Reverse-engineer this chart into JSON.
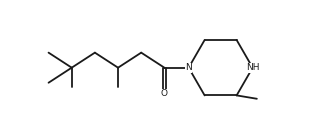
{
  "bg_color": "#ffffff",
  "line_color": "#1a1a1a",
  "line_width": 1.3,
  "font_size": 6.5,
  "nh_label": "NH",
  "n_label": "N",
  "o_label": "O",
  "fig_width": 3.2,
  "fig_height": 1.32,
  "dpi": 100
}
